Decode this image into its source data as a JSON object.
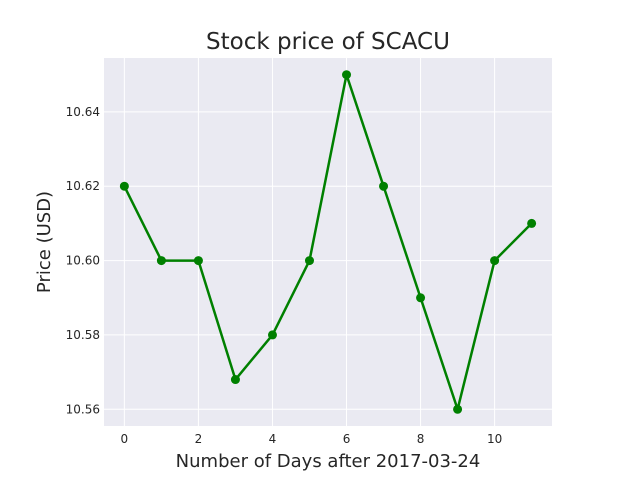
{
  "chart_data": {
    "type": "line",
    "title": "Stock price of SCACU",
    "xlabel": "Number of Days after 2017-03-24",
    "ylabel": "Price (USD)",
    "x": [
      0,
      1,
      2,
      3,
      4,
      5,
      6,
      7,
      8,
      9,
      10,
      11
    ],
    "series": [
      {
        "values": [
          10.62,
          10.6,
          10.6,
          10.568,
          10.58,
          10.6,
          10.65,
          10.62,
          10.59,
          10.56,
          10.6,
          10.61
        ]
      }
    ],
    "xticks": [
      "0",
      "2",
      "4",
      "6",
      "8",
      "10"
    ],
    "yticks": [
      "10.56",
      "10.58",
      "10.60",
      "10.62",
      "10.64"
    ],
    "xlim": [
      -0.55,
      11.55
    ],
    "ylim": [
      10.5555,
      10.6545
    ],
    "grid": true,
    "line_color": "#008000",
    "background_color": "#eaeaf2",
    "grid_color": "#ffffff"
  }
}
